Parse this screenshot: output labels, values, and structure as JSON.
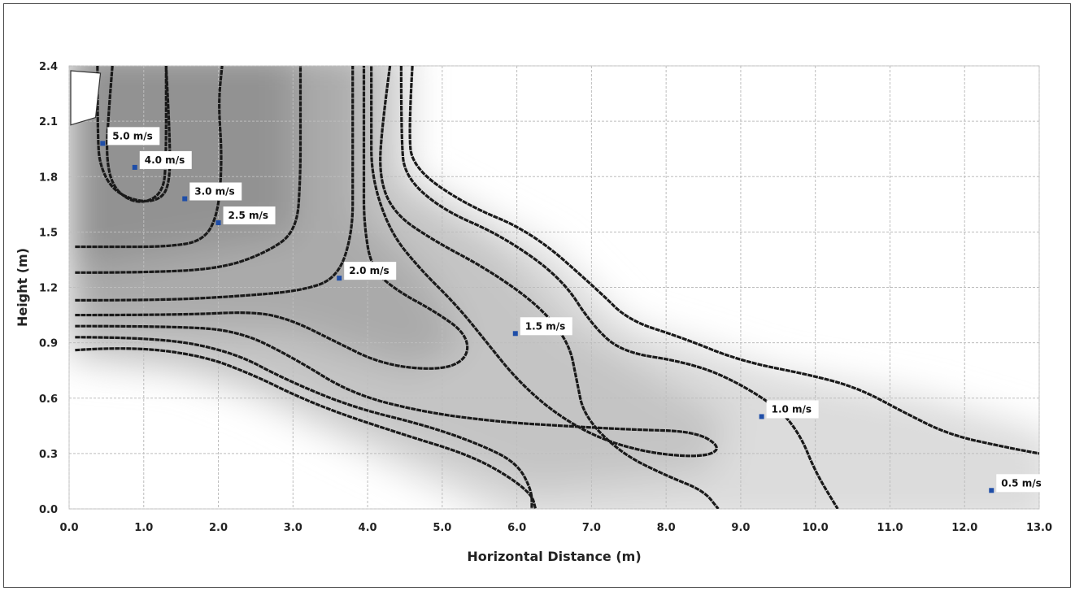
{
  "chart_data": {
    "type": "contour",
    "xlabel": "Horizontal Distance (m)",
    "ylabel": "Height (m)",
    "xlim": [
      0.0,
      13.0
    ],
    "ylim": [
      0.0,
      2.4
    ],
    "x_ticks": [
      "0.0",
      "1.0",
      "2.0",
      "3.0",
      "4.0",
      "5.0",
      "6.0",
      "7.0",
      "8.0",
      "9.0",
      "10.0",
      "11.0",
      "12.0",
      "13.0"
    ],
    "y_ticks": [
      "0.0",
      "0.3",
      "0.6",
      "0.9",
      "1.2",
      "1.5",
      "1.8",
      "2.1",
      "2.4"
    ],
    "grid": true,
    "marker_color": "#1f4ea8",
    "contour_color": "#1a1a1a",
    "labels": [
      {
        "text": "5.0 m/s",
        "x": 0.45,
        "y": 1.98
      },
      {
        "text": "4.0 m/s",
        "x": 0.88,
        "y": 1.85
      },
      {
        "text": "3.0 m/s",
        "x": 1.55,
        "y": 1.68
      },
      {
        "text": "2.5 m/s",
        "x": 2.0,
        "y": 1.55
      },
      {
        "text": "2.0 m/s",
        "x": 3.62,
        "y": 1.25
      },
      {
        "text": "1.5 m/s",
        "x": 5.98,
        "y": 0.95
      },
      {
        "text": "1.0 m/s",
        "x": 9.28,
        "y": 0.5
      },
      {
        "text": "0.5 m/s",
        "x": 12.36,
        "y": 0.1
      }
    ],
    "contours": [
      [
        [
          0.38,
          2.4
        ],
        [
          0.38,
          2.0
        ],
        [
          0.42,
          1.85
        ],
        [
          0.6,
          1.72
        ],
        [
          0.95,
          1.66
        ],
        [
          1.25,
          1.68
        ],
        [
          1.35,
          1.78
        ],
        [
          1.35,
          2.0
        ],
        [
          1.3,
          2.4
        ]
      ],
      [
        [
          0.58,
          2.4
        ],
        [
          0.52,
          2.1
        ],
        [
          0.5,
          1.9
        ],
        [
          0.58,
          1.75
        ],
        [
          0.8,
          1.67
        ],
        [
          1.05,
          1.66
        ],
        [
          1.25,
          1.72
        ],
        [
          1.3,
          1.85
        ],
        [
          1.3,
          2.4
        ]
      ],
      [
        [
          0.08,
          1.42
        ],
        [
          0.6,
          1.42
        ],
        [
          1.3,
          1.42
        ],
        [
          1.8,
          1.45
        ],
        [
          2.0,
          1.6
        ],
        [
          2.05,
          1.9
        ],
        [
          2.0,
          2.2
        ],
        [
          2.05,
          2.4
        ]
      ],
      [
        [
          0.08,
          1.28
        ],
        [
          1.0,
          1.28
        ],
        [
          2.0,
          1.3
        ],
        [
          2.6,
          1.38
        ],
        [
          3.05,
          1.5
        ],
        [
          3.1,
          1.8
        ],
        [
          3.1,
          2.1
        ],
        [
          3.1,
          2.4
        ]
      ],
      [
        [
          0.08,
          1.13
        ],
        [
          1.2,
          1.13
        ],
        [
          2.2,
          1.15
        ],
        [
          3.1,
          1.18
        ],
        [
          3.6,
          1.25
        ],
        [
          3.8,
          1.5
        ],
        [
          3.8,
          1.8
        ],
        [
          3.8,
          2.1
        ],
        [
          3.8,
          2.4
        ]
      ],
      [
        [
          0.08,
          1.05
        ],
        [
          1.5,
          1.05
        ],
        [
          2.5,
          1.07
        ],
        [
          3.0,
          1.02
        ],
        [
          3.5,
          0.92
        ],
        [
          4.2,
          0.78
        ],
        [
          5.0,
          0.75
        ],
        [
          5.35,
          0.82
        ],
        [
          5.32,
          0.95
        ],
        [
          4.9,
          1.07
        ],
        [
          4.4,
          1.18
        ],
        [
          4.05,
          1.3
        ],
        [
          3.95,
          1.55
        ],
        [
          3.95,
          1.8
        ],
        [
          3.95,
          2.1
        ],
        [
          3.95,
          2.4
        ]
      ],
      [
        [
          0.08,
          0.99
        ],
        [
          1.5,
          0.99
        ],
        [
          2.3,
          0.96
        ],
        [
          3.0,
          0.82
        ],
        [
          3.8,
          0.62
        ],
        [
          4.8,
          0.52
        ],
        [
          5.8,
          0.47
        ],
        [
          6.6,
          0.45
        ],
        [
          7.5,
          0.43
        ],
        [
          8.4,
          0.42
        ],
        [
          8.75,
          0.33
        ],
        [
          8.5,
          0.28
        ],
        [
          7.8,
          0.3
        ],
        [
          7.1,
          0.38
        ],
        [
          6.5,
          0.52
        ],
        [
          6.0,
          0.7
        ],
        [
          5.6,
          0.9
        ],
        [
          5.2,
          1.1
        ],
        [
          4.7,
          1.3
        ],
        [
          4.3,
          1.5
        ],
        [
          4.05,
          1.8
        ],
        [
          4.05,
          2.1
        ],
        [
          4.05,
          2.4
        ]
      ],
      [
        [
          0.08,
          0.93
        ],
        [
          1.2,
          0.93
        ],
        [
          2.2,
          0.85
        ],
        [
          2.9,
          0.7
        ],
        [
          3.8,
          0.55
        ],
        [
          4.8,
          0.45
        ],
        [
          5.5,
          0.35
        ],
        [
          6.0,
          0.25
        ],
        [
          6.2,
          0.1
        ],
        [
          6.2,
          0.0
        ]
      ],
      [
        [
          0.08,
          0.86
        ],
        [
          0.8,
          0.88
        ],
        [
          1.8,
          0.83
        ],
        [
          2.5,
          0.72
        ],
        [
          3.0,
          0.62
        ],
        [
          3.6,
          0.52
        ],
        [
          4.5,
          0.4
        ],
        [
          5.3,
          0.3
        ],
        [
          5.8,
          0.2
        ],
        [
          6.2,
          0.08
        ],
        [
          6.25,
          0.0
        ]
      ],
      [
        [
          4.3,
          2.4
        ],
        [
          4.2,
          2.1
        ],
        [
          4.15,
          1.8
        ],
        [
          4.35,
          1.6
        ],
        [
          4.9,
          1.45
        ],
        [
          5.6,
          1.3
        ],
        [
          6.3,
          1.1
        ],
        [
          6.7,
          0.9
        ],
        [
          6.8,
          0.7
        ],
        [
          6.9,
          0.5
        ],
        [
          7.4,
          0.3
        ],
        [
          8.0,
          0.18
        ],
        [
          8.5,
          0.1
        ],
        [
          8.7,
          0.0
        ]
      ],
      [
        [
          4.45,
          2.4
        ],
        [
          4.45,
          2.0
        ],
        [
          4.5,
          1.8
        ],
        [
          5.0,
          1.62
        ],
        [
          5.8,
          1.48
        ],
        [
          6.6,
          1.25
        ],
        [
          7.0,
          1.0
        ],
        [
          7.4,
          0.85
        ],
        [
          8.2,
          0.8
        ],
        [
          8.8,
          0.72
        ],
        [
          9.5,
          0.55
        ],
        [
          9.8,
          0.4
        ],
        [
          10.0,
          0.2
        ],
        [
          10.3,
          0.0
        ]
      ],
      [
        [
          4.6,
          2.4
        ],
        [
          4.55,
          2.05
        ],
        [
          4.6,
          1.85
        ],
        [
          5.3,
          1.65
        ],
        [
          6.2,
          1.5
        ],
        [
          7.1,
          1.18
        ],
        [
          7.5,
          1.02
        ],
        [
          8.2,
          0.93
        ],
        [
          9.0,
          0.8
        ],
        [
          10.0,
          0.72
        ],
        [
          10.6,
          0.65
        ],
        [
          11.2,
          0.52
        ],
        [
          11.8,
          0.4
        ],
        [
          12.6,
          0.33
        ],
        [
          13.0,
          0.3
        ]
      ]
    ]
  }
}
